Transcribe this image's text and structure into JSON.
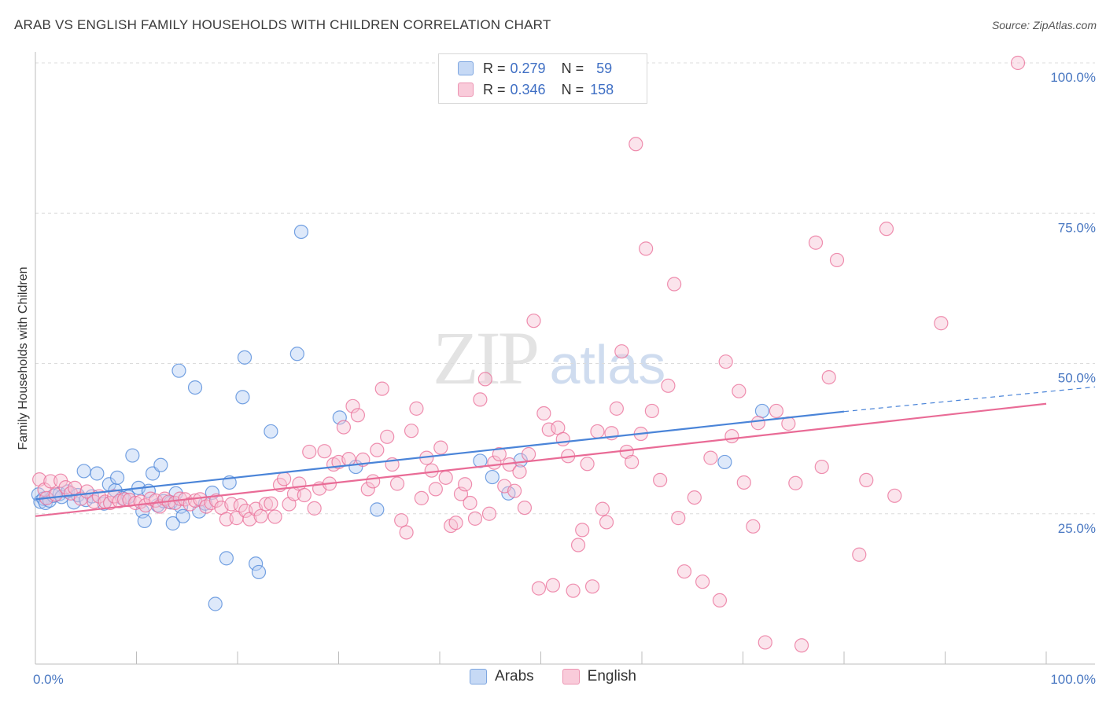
{
  "header": {
    "title": "ARAB VS ENGLISH FAMILY HOUSEHOLDS WITH CHILDREN CORRELATION CHART",
    "source": "Source: ZipAtlas.com"
  },
  "watermark": {
    "zip": "ZIP",
    "atlas": "atlas"
  },
  "legend": {
    "rows": [
      {
        "r_label": "R =",
        "r_value": "0.279",
        "n_label": "N =",
        "n_value": "59",
        "color": "#9dbcec"
      },
      {
        "r_label": "R =",
        "r_value": "0.346",
        "n_label": "N =",
        "n_value": "158",
        "color": "#f3a9c0"
      }
    ]
  },
  "bottom_legend": [
    {
      "label": "Arabs",
      "color": "#9dbcec"
    },
    {
      "label": "English",
      "color": "#f3a9c0"
    }
  ],
  "chart_data": {
    "type": "scatter",
    "ylabel": "Family Households with Children",
    "xlabel": "",
    "xlim": [
      0,
      100
    ],
    "ylim": [
      0,
      100
    ],
    "x_tick_labels": [
      {
        "value": 0,
        "label": "0.0%"
      },
      {
        "value": 100,
        "label": "100.0%"
      }
    ],
    "y_tick_labels": [
      {
        "value": 25,
        "label": "25.0%"
      },
      {
        "value": 50,
        "label": "50.0%"
      },
      {
        "value": 75,
        "label": "75.0%"
      },
      {
        "value": 100,
        "label": "100.0%"
      }
    ],
    "grid": true,
    "legend_position": "top-center",
    "series": [
      {
        "name": "Arabs",
        "color": "#4a84d8",
        "fill": "#b6cff3",
        "trend": {
          "x0": 0,
          "y0": 27.4,
          "x1": 80,
          "y1": 42.0,
          "dash_to": 100,
          "dash_y": 45.7
        },
        "points": [
          [
            0.3,
            28.2
          ],
          [
            0.5,
            27.0
          ],
          [
            0.8,
            27.5
          ],
          [
            1.0,
            26.8
          ],
          [
            1.4,
            27.2
          ],
          [
            1.8,
            28.0
          ],
          [
            2.4,
            28.3
          ],
          [
            2.6,
            27.8
          ],
          [
            3.2,
            28.7
          ],
          [
            3.8,
            26.9
          ],
          [
            4.2,
            28.1
          ],
          [
            4.8,
            32.1
          ],
          [
            5.0,
            27.3
          ],
          [
            5.6,
            27.9
          ],
          [
            6.1,
            31.7
          ],
          [
            6.8,
            26.7
          ],
          [
            7.3,
            29.9
          ],
          [
            7.9,
            28.9
          ],
          [
            8.1,
            31.0
          ],
          [
            8.6,
            27.6
          ],
          [
            9.2,
            27.8
          ],
          [
            9.6,
            34.7
          ],
          [
            10.2,
            29.3
          ],
          [
            10.6,
            25.4
          ],
          [
            10.8,
            23.8
          ],
          [
            11.2,
            28.8
          ],
          [
            11.6,
            31.7
          ],
          [
            12.1,
            26.4
          ],
          [
            12.4,
            33.1
          ],
          [
            12.7,
            27.1
          ],
          [
            13.4,
            26.9
          ],
          [
            13.6,
            23.4
          ],
          [
            13.9,
            28.4
          ],
          [
            14.2,
            48.8
          ],
          [
            14.4,
            26.2
          ],
          [
            14.6,
            24.6
          ],
          [
            15.8,
            46.0
          ],
          [
            16.2,
            25.4
          ],
          [
            16.8,
            26.7
          ],
          [
            17.5,
            28.5
          ],
          [
            17.8,
            10.0
          ],
          [
            18.9,
            17.6
          ],
          [
            19.2,
            30.2
          ],
          [
            20.5,
            44.4
          ],
          [
            20.7,
            51.0
          ],
          [
            21.8,
            16.7
          ],
          [
            22.1,
            15.3
          ],
          [
            23.3,
            38.7
          ],
          [
            25.9,
            51.6
          ],
          [
            26.3,
            71.9
          ],
          [
            30.1,
            41.0
          ],
          [
            31.7,
            32.8
          ],
          [
            33.8,
            25.7
          ],
          [
            44.0,
            33.8
          ],
          [
            45.2,
            31.1
          ],
          [
            46.8,
            28.4
          ],
          [
            48.0,
            33.9
          ],
          [
            68.2,
            33.6
          ],
          [
            71.9,
            42.1
          ]
        ]
      },
      {
        "name": "English",
        "color": "#e96b96",
        "fill": "#f7c3d4",
        "trend": {
          "x0": 0,
          "y0": 24.6,
          "x1": 100,
          "y1": 43.3
        },
        "points": [
          [
            0.4,
            30.7
          ],
          [
            0.9,
            29.0
          ],
          [
            1.1,
            27.6
          ],
          [
            1.5,
            30.4
          ],
          [
            2.0,
            28.2
          ],
          [
            2.5,
            30.5
          ],
          [
            3.0,
            29.4
          ],
          [
            3.5,
            28.4
          ],
          [
            3.9,
            29.3
          ],
          [
            4.5,
            27.5
          ],
          [
            5.1,
            28.7
          ],
          [
            5.8,
            27.0
          ],
          [
            6.3,
            27.9
          ],
          [
            6.9,
            27.0
          ],
          [
            7.4,
            26.8
          ],
          [
            7.8,
            27.9
          ],
          [
            8.3,
            27.1
          ],
          [
            8.8,
            27.4
          ],
          [
            9.3,
            27.3
          ],
          [
            9.9,
            26.8
          ],
          [
            10.4,
            27.0
          ],
          [
            10.9,
            26.4
          ],
          [
            11.4,
            27.5
          ],
          [
            11.9,
            27.2
          ],
          [
            12.3,
            26.2
          ],
          [
            12.8,
            27.5
          ],
          [
            13.2,
            27.0
          ],
          [
            13.8,
            26.8
          ],
          [
            14.3,
            27.5
          ],
          [
            14.8,
            27.4
          ],
          [
            15.3,
            26.6
          ],
          [
            15.8,
            27.2
          ],
          [
            16.3,
            27.4
          ],
          [
            16.9,
            26.2
          ],
          [
            17.4,
            26.8
          ],
          [
            17.9,
            27.2
          ],
          [
            18.4,
            26.0
          ],
          [
            18.9,
            24.1
          ],
          [
            19.4,
            26.6
          ],
          [
            19.9,
            24.3
          ],
          [
            20.3,
            26.4
          ],
          [
            20.8,
            25.5
          ],
          [
            21.2,
            24.1
          ],
          [
            21.8,
            25.8
          ],
          [
            22.3,
            24.6
          ],
          [
            22.8,
            26.6
          ],
          [
            23.3,
            26.7
          ],
          [
            23.7,
            24.5
          ],
          [
            24.2,
            29.8
          ],
          [
            24.6,
            30.8
          ],
          [
            25.1,
            26.6
          ],
          [
            25.6,
            28.3
          ],
          [
            26.1,
            30.0
          ],
          [
            26.6,
            28.1
          ],
          [
            27.1,
            35.3
          ],
          [
            27.6,
            25.9
          ],
          [
            28.1,
            29.2
          ],
          [
            28.6,
            35.4
          ],
          [
            29.1,
            30.0
          ],
          [
            29.5,
            33.2
          ],
          [
            30.0,
            33.6
          ],
          [
            30.5,
            39.4
          ],
          [
            31.0,
            34.1
          ],
          [
            31.4,
            42.9
          ],
          [
            31.9,
            41.4
          ],
          [
            32.4,
            34.0
          ],
          [
            32.9,
            29.1
          ],
          [
            33.4,
            30.4
          ],
          [
            33.8,
            35.6
          ],
          [
            34.3,
            45.8
          ],
          [
            34.8,
            37.8
          ],
          [
            35.3,
            33.2
          ],
          [
            35.8,
            30.0
          ],
          [
            36.2,
            23.9
          ],
          [
            36.7,
            21.9
          ],
          [
            37.2,
            38.8
          ],
          [
            37.7,
            42.5
          ],
          [
            38.2,
            27.6
          ],
          [
            38.7,
            34.3
          ],
          [
            39.2,
            32.2
          ],
          [
            39.6,
            29.1
          ],
          [
            40.1,
            36.0
          ],
          [
            40.6,
            31.0
          ],
          [
            41.1,
            23.0
          ],
          [
            41.6,
            23.5
          ],
          [
            42.1,
            28.3
          ],
          [
            42.5,
            29.9
          ],
          [
            43.0,
            26.8
          ],
          [
            43.5,
            24.2
          ],
          [
            44.0,
            44.0
          ],
          [
            44.5,
            47.4
          ],
          [
            44.9,
            25.0
          ],
          [
            45.4,
            33.5
          ],
          [
            45.9,
            34.9
          ],
          [
            46.4,
            29.6
          ],
          [
            46.9,
            33.2
          ],
          [
            47.4,
            28.8
          ],
          [
            47.9,
            32.0
          ],
          [
            48.4,
            26.0
          ],
          [
            48.8,
            34.9
          ],
          [
            49.3,
            57.1
          ],
          [
            49.8,
            12.6
          ],
          [
            50.3,
            41.7
          ],
          [
            50.8,
            39.0
          ],
          [
            51.2,
            13.1
          ],
          [
            51.7,
            39.3
          ],
          [
            52.2,
            37.4
          ],
          [
            52.7,
            34.6
          ],
          [
            53.2,
            12.2
          ],
          [
            53.7,
            19.8
          ],
          [
            54.1,
            22.3
          ],
          [
            54.6,
            33.3
          ],
          [
            55.1,
            12.9
          ],
          [
            55.6,
            38.7
          ],
          [
            56.1,
            25.8
          ],
          [
            56.5,
            23.6
          ],
          [
            57.0,
            38.4
          ],
          [
            57.5,
            42.5
          ],
          [
            58.0,
            52.0
          ],
          [
            58.5,
            35.3
          ],
          [
            59.0,
            33.6
          ],
          [
            59.4,
            86.5
          ],
          [
            59.9,
            38.3
          ],
          [
            60.4,
            69.1
          ],
          [
            61.0,
            42.1
          ],
          [
            61.8,
            30.6
          ],
          [
            62.6,
            46.3
          ],
          [
            63.2,
            63.2
          ],
          [
            63.6,
            24.3
          ],
          [
            64.2,
            15.4
          ],
          [
            65.2,
            27.7
          ],
          [
            66.0,
            13.7
          ],
          [
            66.8,
            34.3
          ],
          [
            67.7,
            10.6
          ],
          [
            68.3,
            50.3
          ],
          [
            68.9,
            37.9
          ],
          [
            69.6,
            45.4
          ],
          [
            70.1,
            30.2
          ],
          [
            71.0,
            22.9
          ],
          [
            71.5,
            40.1
          ],
          [
            72.2,
            3.6
          ],
          [
            73.3,
            42.1
          ],
          [
            74.5,
            40.0
          ],
          [
            75.2,
            30.1
          ],
          [
            75.8,
            3.1
          ],
          [
            77.2,
            70.1
          ],
          [
            77.8,
            32.8
          ],
          [
            78.5,
            47.7
          ],
          [
            79.3,
            67.2
          ],
          [
            81.5,
            18.2
          ],
          [
            82.2,
            30.6
          ],
          [
            84.2,
            72.4
          ],
          [
            85.0,
            28.0
          ],
          [
            89.6,
            56.7
          ],
          [
            97.2,
            100.0
          ]
        ]
      }
    ]
  }
}
